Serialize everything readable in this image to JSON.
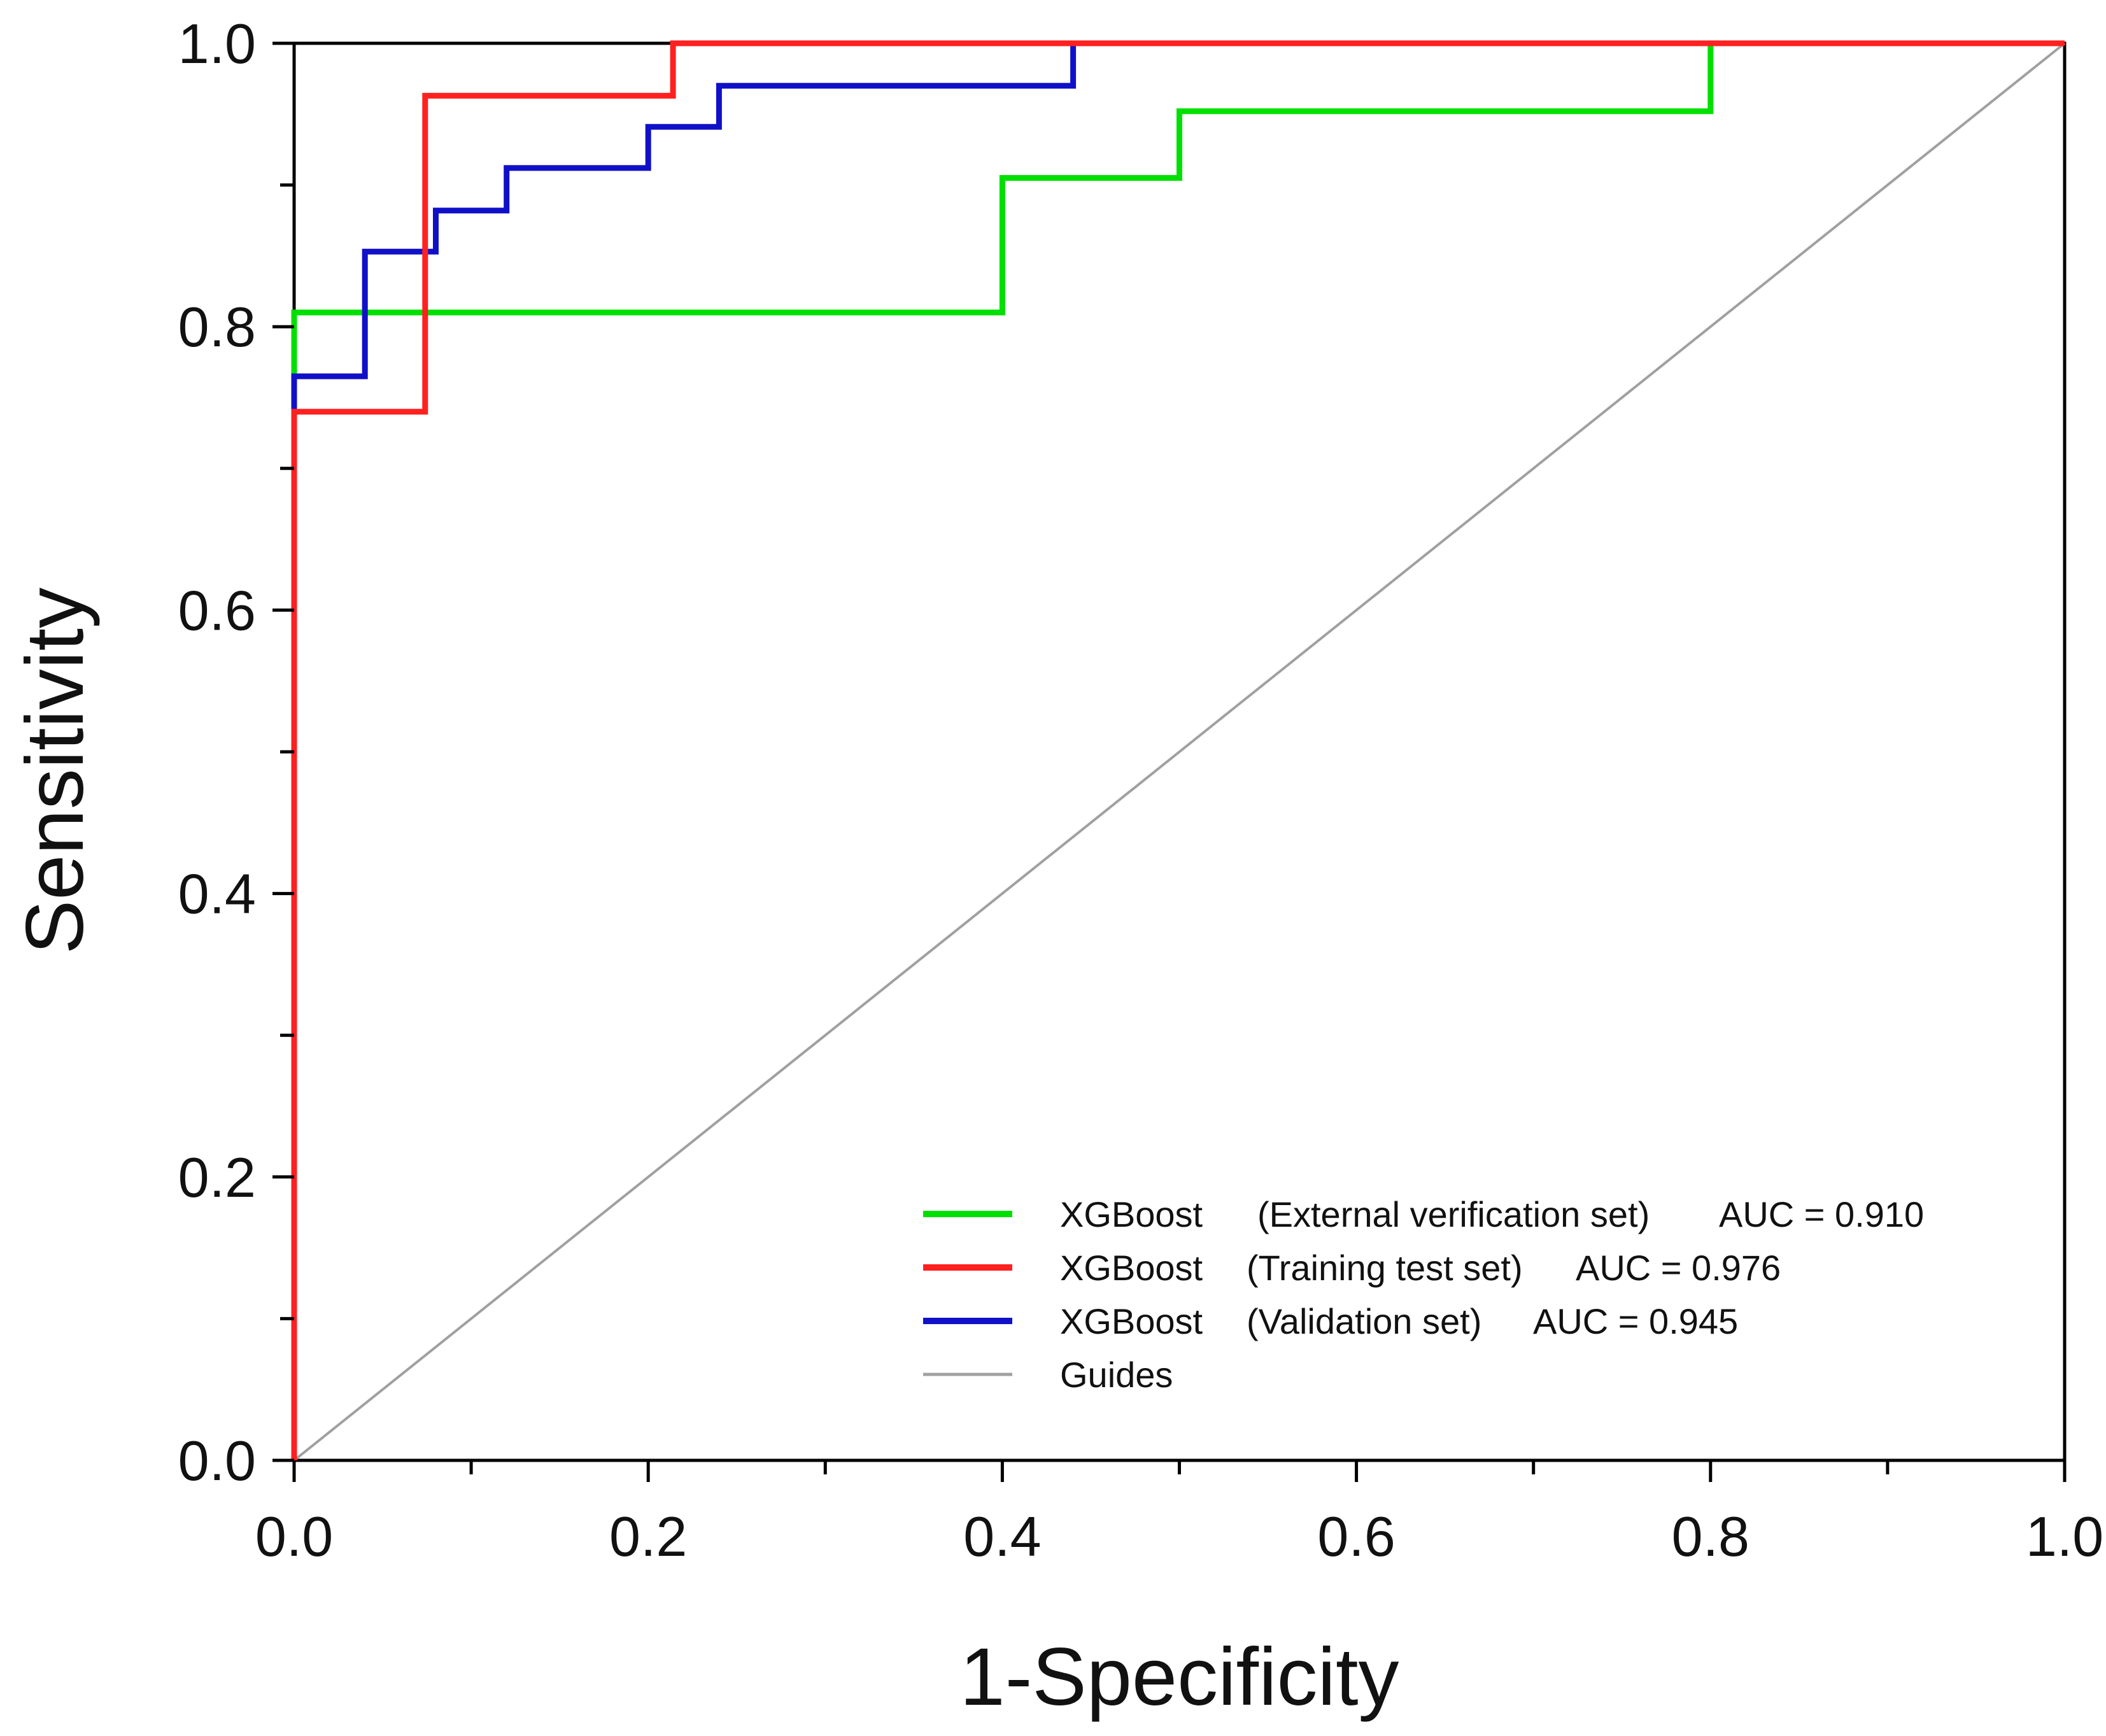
{
  "chart_data": {
    "type": "line",
    "title": "",
    "xlabel": "1-Specificity",
    "ylabel": "Sensitivity",
    "xlim": [
      0,
      1
    ],
    "ylim": [
      0,
      1
    ],
    "grid": false,
    "legend_position": "bottom-right",
    "x_ticks": [
      "0.0",
      "0.2",
      "0.4",
      "0.6",
      "0.8",
      "1.0"
    ],
    "y_ticks": [
      "0.0",
      "0.2",
      "0.4",
      "0.6",
      "0.8",
      "1.0"
    ],
    "series": [
      {
        "name": "XGBoost",
        "subset": "(External verification set)",
        "auc_text": "AUC = 0.910",
        "color": "#00e000",
        "step": true,
        "points": [
          [
            0,
            0
          ],
          [
            0,
            0.81
          ],
          [
            0.4,
            0.81
          ],
          [
            0.4,
            0.905
          ],
          [
            0.5,
            0.905
          ],
          [
            0.5,
            0.952
          ],
          [
            0.8,
            0.952
          ],
          [
            0.8,
            1.0
          ],
          [
            1.0,
            1.0
          ]
        ]
      },
      {
        "name": "XGBoost",
        "subset": "(Training test set)",
        "auc_text": "AUC = 0.976",
        "color": "#ff2020",
        "step": true,
        "points": [
          [
            0,
            0
          ],
          [
            0,
            0.74
          ],
          [
            0.074,
            0.74
          ],
          [
            0.074,
            0.963
          ],
          [
            0.214,
            0.963
          ],
          [
            0.214,
            1.0
          ],
          [
            1.0,
            1.0
          ]
        ]
      },
      {
        "name": "XGBoost",
        "subset": "(Validation set)",
        "auc_text": "AUC = 0.945",
        "color": "#1010c8",
        "step": true,
        "points": [
          [
            0,
            0
          ],
          [
            0,
            0.765
          ],
          [
            0.04,
            0.765
          ],
          [
            0.04,
            0.853
          ],
          [
            0.08,
            0.853
          ],
          [
            0.08,
            0.882
          ],
          [
            0.12,
            0.882
          ],
          [
            0.12,
            0.912
          ],
          [
            0.2,
            0.912
          ],
          [
            0.2,
            0.941
          ],
          [
            0.24,
            0.941
          ],
          [
            0.24,
            0.97
          ],
          [
            0.44,
            0.97
          ],
          [
            0.44,
            1.0
          ],
          [
            1.0,
            1.0
          ]
        ]
      },
      {
        "name": "Guides",
        "subset": "",
        "auc_text": "",
        "color": "#a0a0a0",
        "step": false,
        "points": [
          [
            0,
            0
          ],
          [
            1,
            1
          ]
        ]
      }
    ]
  }
}
